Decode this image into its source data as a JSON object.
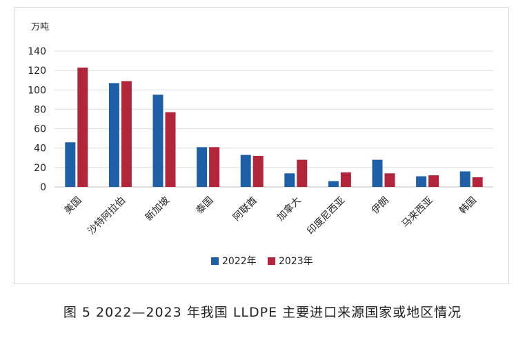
{
  "caption": "图 5  2022—2023 年我国 LLDPE 主要进口来源国家或地区情况",
  "chart_data": {
    "type": "bar",
    "unit_label": "万吨",
    "categories": [
      "美国",
      "沙特阿拉伯",
      "新加坡",
      "泰国",
      "阿联酋",
      "加拿大",
      "印度尼西亚",
      "伊朗",
      "马来西亚",
      "韩国"
    ],
    "series": [
      {
        "name": "2022年",
        "color": "#1f5fa8",
        "values": [
          46,
          107,
          95,
          41,
          33,
          14,
          6,
          28,
          11,
          16
        ]
      },
      {
        "name": "2023年",
        "color": "#b1263b",
        "values": [
          123,
          109,
          77,
          41,
          32,
          28,
          15,
          14,
          12,
          10
        ]
      }
    ],
    "ylim": [
      0,
      140
    ],
    "yticks": [
      0,
      20,
      40,
      60,
      80,
      100,
      120,
      140
    ],
    "grid": true,
    "legend_position": "bottom"
  }
}
